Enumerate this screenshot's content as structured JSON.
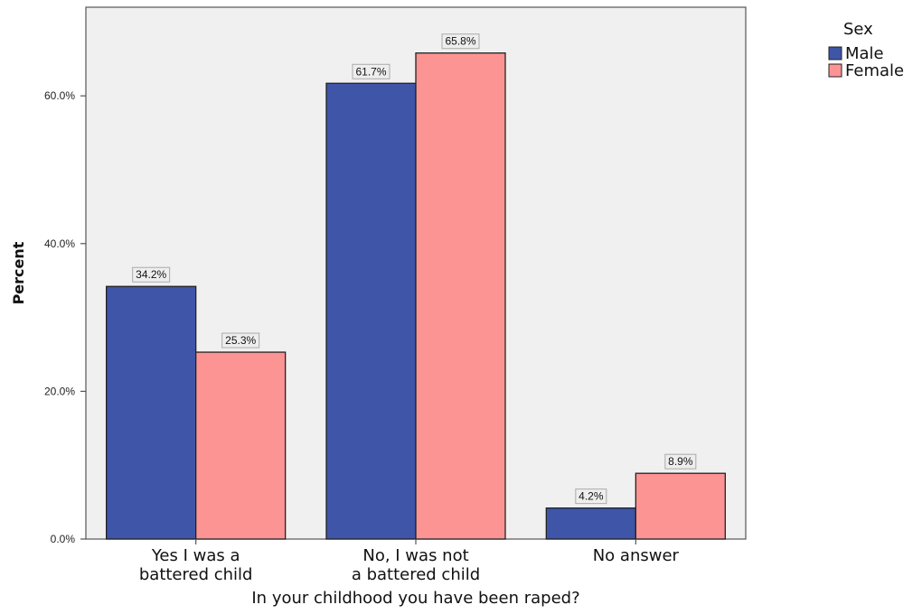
{
  "chart_data": {
    "type": "bar",
    "xlabel": "In your childhood you have been raped?",
    "ylabel": "Percent",
    "categories": [
      [
        "Yes I was a",
        "battered child"
      ],
      [
        "No, I was not",
        "a battered child"
      ],
      [
        "No answer"
      ]
    ],
    "series": [
      {
        "name": "Male",
        "color": "#3f55a8",
        "values": [
          34.2,
          61.7,
          4.2
        ],
        "labels": [
          "34.2%",
          "61.7%",
          "4.2%"
        ]
      },
      {
        "name": "Female",
        "color": "#fc9494",
        "values": [
          25.3,
          65.8,
          8.9
        ],
        "labels": [
          "25.3%",
          "65.8%",
          "8.9%"
        ]
      }
    ],
    "ylim": [
      0,
      72
    ],
    "yticks": [
      0,
      20,
      40,
      60
    ],
    "ytick_labels": [
      "0.0%",
      "20.0%",
      "40.0%",
      "60.0%"
    ],
    "grid": false,
    "legend": {
      "title": "Sex",
      "position": "top-right"
    },
    "plot_background": "#f0f0f0"
  }
}
